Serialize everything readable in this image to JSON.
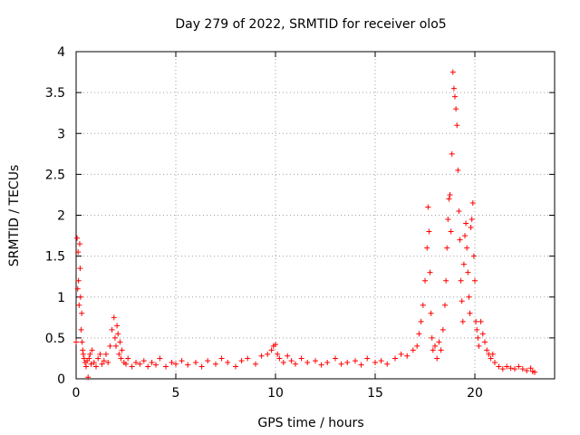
{
  "chart_data": {
    "type": "scatter",
    "title": "Day 279 of 2022, SRMTID for receiver olo5",
    "xlabel": "GPS time / hours",
    "ylabel": "SRMTID / TECUs",
    "xlim": [
      0,
      24
    ],
    "ylim": [
      0,
      4
    ],
    "xticks": [
      0,
      5,
      10,
      15,
      20
    ],
    "yticks": [
      0,
      0.5,
      1,
      1.5,
      2,
      2.5,
      3,
      3.5,
      4
    ],
    "xtick_labels": [
      "0",
      "5",
      "10",
      "15",
      "20"
    ],
    "ytick_labels": [
      "0",
      "0.5",
      "1",
      "1.5",
      "2",
      "2.5",
      "3",
      "3.5",
      "4"
    ],
    "grid": true,
    "marker": "+",
    "color": "#ff0000",
    "series": [
      {
        "name": "olo5",
        "x": [
          0.0,
          0.05,
          0.08,
          0.1,
          0.12,
          0.15,
          0.18,
          0.2,
          0.22,
          0.25,
          0.28,
          0.3,
          0.33,
          0.36,
          0.4,
          0.45,
          0.5,
          0.55,
          0.6,
          0.65,
          0.7,
          0.75,
          0.8,
          0.9,
          1.0,
          1.1,
          1.2,
          1.3,
          1.4,
          1.5,
          1.6,
          1.7,
          1.8,
          1.9,
          1.95,
          2.0,
          2.05,
          2.1,
          2.15,
          2.2,
          2.25,
          2.3,
          2.4,
          2.5,
          2.6,
          2.8,
          3.0,
          3.2,
          3.4,
          3.6,
          3.8,
          4.0,
          4.2,
          4.5,
          4.8,
          5.0,
          5.3,
          5.6,
          6.0,
          6.3,
          6.6,
          7.0,
          7.3,
          7.6,
          8.0,
          8.3,
          8.6,
          9.0,
          9.3,
          9.6,
          9.8,
          9.9,
          10.0,
          10.1,
          10.2,
          10.4,
          10.6,
          10.8,
          11.0,
          11.3,
          11.6,
          12.0,
          12.3,
          12.6,
          13.0,
          13.3,
          13.6,
          14.0,
          14.3,
          14.6,
          15.0,
          15.3,
          15.6,
          16.0,
          16.3,
          16.6,
          16.9,
          17.1,
          17.2,
          17.3,
          17.4,
          17.5,
          17.6,
          17.65,
          17.7,
          17.75,
          17.8,
          17.85,
          17.9,
          18.0,
          18.1,
          18.2,
          18.3,
          18.4,
          18.5,
          18.55,
          18.6,
          18.65,
          18.7,
          18.75,
          18.8,
          18.85,
          18.9,
          18.95,
          19.0,
          19.05,
          19.1,
          19.15,
          19.2,
          19.25,
          19.3,
          19.35,
          19.4,
          19.45,
          19.5,
          19.55,
          19.6,
          19.65,
          19.7,
          19.75,
          19.8,
          19.85,
          19.9,
          19.95,
          20.0,
          20.05,
          20.1,
          20.15,
          20.2,
          20.3,
          20.4,
          20.5,
          20.6,
          20.7,
          20.8,
          20.9,
          21.0,
          21.2,
          21.4,
          21.6,
          21.8,
          22.0,
          22.2,
          22.4,
          22.6,
          22.8,
          22.9,
          23.0
        ],
        "y": [
          0.45,
          1.72,
          1.1,
          1.55,
          1.2,
          0.9,
          1.65,
          1.35,
          1.0,
          0.6,
          0.8,
          0.45,
          0.35,
          0.3,
          0.25,
          0.2,
          0.15,
          0.22,
          0.02,
          0.25,
          0.3,
          0.18,
          0.35,
          0.2,
          0.15,
          0.25,
          0.3,
          0.18,
          0.22,
          0.3,
          0.2,
          0.4,
          0.6,
          0.75,
          0.5,
          0.4,
          0.65,
          0.55,
          0.3,
          0.45,
          0.25,
          0.35,
          0.2,
          0.18,
          0.25,
          0.15,
          0.2,
          0.18,
          0.22,
          0.15,
          0.2,
          0.17,
          0.25,
          0.15,
          0.2,
          0.18,
          0.22,
          0.17,
          0.2,
          0.15,
          0.22,
          0.18,
          0.25,
          0.2,
          0.15,
          0.22,
          0.25,
          0.18,
          0.28,
          0.3,
          0.35,
          0.4,
          0.42,
          0.3,
          0.25,
          0.2,
          0.28,
          0.22,
          0.18,
          0.25,
          0.2,
          0.22,
          0.17,
          0.2,
          0.25,
          0.18,
          0.2,
          0.22,
          0.17,
          0.25,
          0.2,
          0.22,
          0.18,
          0.25,
          0.3,
          0.28,
          0.35,
          0.4,
          0.55,
          0.7,
          0.9,
          1.2,
          1.6,
          2.1,
          1.8,
          1.3,
          0.8,
          0.5,
          0.35,
          0.4,
          0.25,
          0.45,
          0.35,
          0.6,
          0.9,
          1.2,
          1.6,
          1.95,
          2.2,
          2.25,
          1.8,
          2.75,
          3.75,
          3.55,
          3.45,
          3.3,
          3.1,
          2.55,
          2.05,
          1.7,
          1.2,
          0.95,
          0.7,
          1.4,
          1.75,
          1.9,
          1.6,
          1.3,
          1.0,
          0.8,
          1.85,
          1.95,
          2.15,
          1.5,
          1.2,
          0.7,
          0.6,
          0.5,
          0.4,
          0.7,
          0.55,
          0.45,
          0.35,
          0.3,
          0.25,
          0.3,
          0.2,
          0.15,
          0.12,
          0.15,
          0.13,
          0.12,
          0.15,
          0.12,
          0.1,
          0.13,
          0.09,
          0.08
        ]
      }
    ]
  }
}
